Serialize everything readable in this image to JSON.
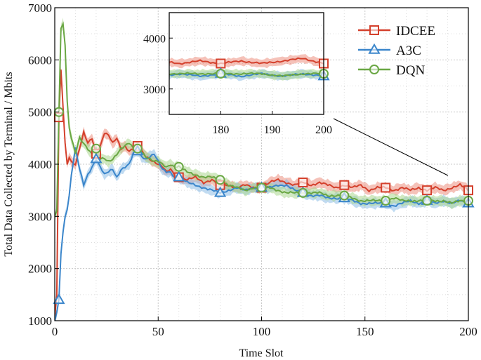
{
  "chart_data": {
    "type": "line",
    "title": "",
    "xlabel": "Time Slot",
    "ylabel": "Total Data Collected by Terminal / Mbits",
    "xlim": [
      0,
      200
    ],
    "ylim": [
      1000,
      7000
    ],
    "xticks": [
      0,
      50,
      100,
      150,
      200
    ],
    "yticks": [
      1000,
      2000,
      3000,
      4000,
      5000,
      6000,
      7000
    ],
    "grid": true,
    "legend_position": "top-right",
    "series": [
      {
        "name": "IDCEE",
        "color": "#d4402c",
        "band_color": "#ec8f80",
        "marker": "square",
        "x": [
          0,
          1,
          2,
          3,
          4,
          5,
          6,
          7,
          8,
          10,
          12,
          14,
          16,
          18,
          20,
          22,
          24,
          26,
          28,
          30,
          32,
          34,
          36,
          38,
          40,
          42,
          44,
          46,
          48,
          50,
          52,
          54,
          56,
          58,
          60,
          64,
          68,
          72,
          76,
          80,
          84,
          88,
          92,
          96,
          100,
          104,
          108,
          112,
          116,
          120,
          124,
          128,
          132,
          136,
          140,
          144,
          148,
          152,
          156,
          160,
          164,
          168,
          172,
          176,
          180,
          184,
          188,
          192,
          196,
          200
        ],
        "y": [
          1050,
          1500,
          4900,
          5800,
          5100,
          4400,
          4000,
          4150,
          4050,
          4000,
          4300,
          4600,
          4400,
          4500,
          4200,
          4350,
          4600,
          4550,
          4400,
          4500,
          4300,
          4350,
          4250,
          4300,
          4350,
          4250,
          4150,
          4100,
          4050,
          4000,
          3950,
          3850,
          3900,
          3800,
          3750,
          3700,
          3750,
          3650,
          3700,
          3600,
          3600,
          3550,
          3600,
          3550,
          3550,
          3650,
          3700,
          3650,
          3600,
          3650,
          3600,
          3650,
          3600,
          3550,
          3600,
          3550,
          3600,
          3500,
          3550,
          3550,
          3500,
          3550,
          3500,
          3550,
          3500,
          3550,
          3500,
          3550,
          3600,
          3500
        ],
        "marker_x": [
          2,
          20,
          40,
          60,
          80,
          100,
          120,
          140,
          160,
          180,
          200
        ]
      },
      {
        "name": "A3C",
        "color": "#3b86cb",
        "band_color": "#8ebde6",
        "marker": "triangle",
        "x": [
          0,
          1,
          2,
          3,
          4,
          5,
          6,
          7,
          8,
          10,
          12,
          14,
          16,
          18,
          20,
          22,
          24,
          26,
          28,
          30,
          32,
          34,
          36,
          38,
          40,
          42,
          44,
          46,
          48,
          50,
          52,
          54,
          56,
          58,
          60,
          64,
          68,
          72,
          76,
          80,
          84,
          88,
          92,
          96,
          100,
          104,
          108,
          112,
          116,
          120,
          124,
          128,
          132,
          136,
          140,
          144,
          148,
          152,
          156,
          160,
          164,
          168,
          172,
          176,
          180,
          184,
          188,
          192,
          196,
          200
        ],
        "y": [
          1000,
          1150,
          1400,
          2300,
          2700,
          3000,
          3150,
          3400,
          3800,
          4300,
          3900,
          3600,
          3800,
          3950,
          4100,
          3950,
          3800,
          3850,
          3900,
          3750,
          3900,
          3950,
          4000,
          4200,
          4250,
          4150,
          4100,
          4150,
          4200,
          4050,
          3900,
          3850,
          3850,
          3750,
          3750,
          3650,
          3600,
          3550,
          3500,
          3450,
          3500,
          3550,
          3500,
          3550,
          3550,
          3550,
          3600,
          3600,
          3500,
          3450,
          3400,
          3400,
          3350,
          3350,
          3350,
          3300,
          3250,
          3250,
          3250,
          3250,
          3200,
          3250,
          3300,
          3250,
          3300,
          3250,
          3300,
          3250,
          3300,
          3250
        ],
        "marker_x": [
          2,
          20,
          40,
          60,
          80,
          100,
          120,
          140,
          160,
          180,
          200
        ]
      },
      {
        "name": "DQN",
        "color": "#6aa744",
        "band_color": "#acd78f",
        "marker": "circle",
        "x": [
          0,
          1,
          2,
          3,
          4,
          5,
          6,
          7,
          8,
          10,
          12,
          14,
          16,
          18,
          20,
          22,
          24,
          26,
          28,
          30,
          32,
          34,
          36,
          38,
          40,
          42,
          44,
          46,
          48,
          50,
          52,
          54,
          56,
          58,
          60,
          64,
          68,
          72,
          76,
          80,
          84,
          88,
          92,
          96,
          100,
          104,
          108,
          112,
          116,
          120,
          124,
          128,
          132,
          136,
          140,
          144,
          148,
          152,
          156,
          160,
          164,
          168,
          172,
          176,
          180,
          184,
          188,
          192,
          196,
          200
        ],
        "y": [
          3000,
          3100,
          5000,
          6600,
          6700,
          6300,
          5200,
          4700,
          4500,
          4200,
          4500,
          4400,
          4300,
          4200,
          4300,
          4100,
          4100,
          4050,
          4100,
          4200,
          4300,
          4350,
          4400,
          4300,
          4300,
          4250,
          4150,
          4100,
          4050,
          4050,
          4000,
          3950,
          4000,
          3950,
          3950,
          3850,
          3800,
          3750,
          3750,
          3700,
          3600,
          3550,
          3500,
          3550,
          3550,
          3550,
          3500,
          3450,
          3450,
          3450,
          3450,
          3450,
          3400,
          3400,
          3400,
          3350,
          3300,
          3300,
          3300,
          3300,
          3350,
          3300,
          3300,
          3300,
          3300,
          3300,
          3300,
          3250,
          3300,
          3300
        ],
        "marker_x": [
          2,
          20,
          40,
          60,
          80,
          100,
          120,
          140,
          160,
          180,
          200
        ]
      }
    ],
    "inset": {
      "xlim": [
        170,
        200
      ],
      "ylim": [
        2500,
        4500
      ],
      "xticks": [
        180,
        190,
        200
      ],
      "yticks": [
        3000,
        4000
      ],
      "zoom_target_x": 200
    }
  }
}
